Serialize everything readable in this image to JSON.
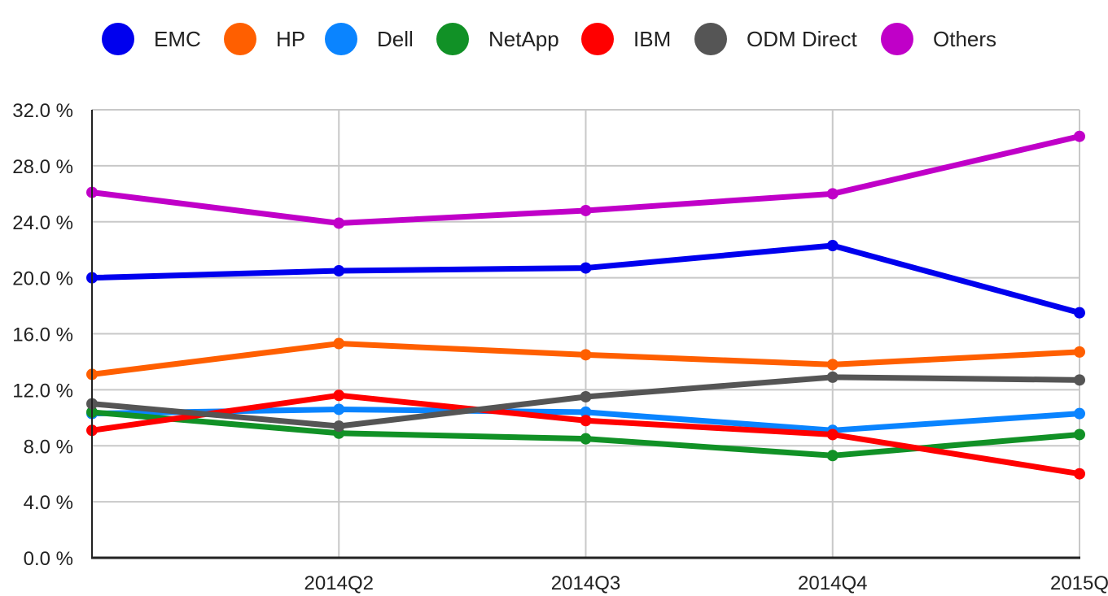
{
  "chart_data": {
    "type": "line",
    "title": "",
    "xlabel": "",
    "ylabel": "",
    "x": [
      "",
      "2014Q2",
      "2014Q3",
      "2014Q4",
      "2015Q"
    ],
    "ylim": [
      0,
      32
    ],
    "yticks": [
      "0.0 %",
      "4.0 %",
      "8.0 %",
      "12.0 %",
      "16.0 %",
      "20.0 %",
      "24.0 %",
      "28.0 %",
      "32.0 %"
    ],
    "grid": true,
    "legend_position": "top",
    "series": [
      {
        "name": "EMC",
        "color": "#0000ee",
        "values": [
          20.0,
          20.5,
          20.7,
          22.3,
          17.5
        ]
      },
      {
        "name": "HP",
        "color": "#ff5f00",
        "values": [
          13.1,
          15.3,
          14.5,
          13.8,
          14.7
        ]
      },
      {
        "name": "Dell",
        "color": "#0a84ff",
        "values": [
          10.3,
          10.6,
          10.4,
          9.1,
          10.3
        ]
      },
      {
        "name": "NetApp",
        "color": "#119126",
        "values": [
          10.4,
          8.9,
          8.5,
          7.3,
          8.8
        ]
      },
      {
        "name": "IBM",
        "color": "#ff0000",
        "values": [
          9.1,
          11.6,
          9.8,
          8.8,
          6.0
        ]
      },
      {
        "name": "ODM Direct",
        "color": "#555555",
        "values": [
          11.0,
          9.4,
          11.5,
          12.9,
          12.7
        ]
      },
      {
        "name": "Others",
        "color": "#c000c8",
        "values": [
          26.1,
          23.9,
          24.8,
          26.0,
          30.1
        ]
      }
    ]
  }
}
